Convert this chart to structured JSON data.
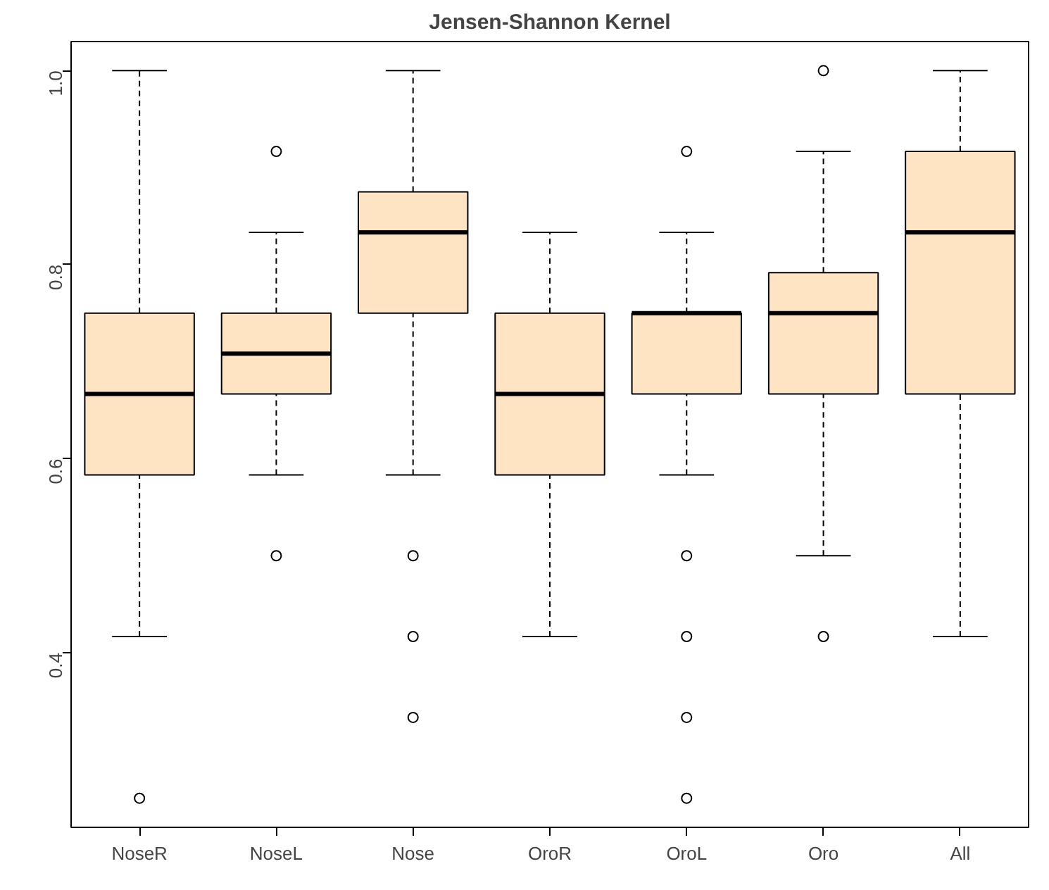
{
  "chart_data": {
    "type": "box",
    "title": "Jensen-Shannon Kernel",
    "categories": [
      "NoseR",
      "NoseL",
      "Nose",
      "OroR",
      "OroL",
      "Oro",
      "All"
    ],
    "series": [
      {
        "color": "#ffe4c4",
        "boxes": [
          {
            "low": 0.4167,
            "q1": 0.5833,
            "median": 0.6667,
            "q3": 0.75,
            "high": 1.0,
            "outliers": [
              0.25
            ]
          },
          {
            "low": 0.5833,
            "q1": 0.6667,
            "median": 0.7083,
            "q3": 0.75,
            "high": 0.8333,
            "outliers": [
              0.9167,
              0.5
            ]
          },
          {
            "low": 0.5833,
            "q1": 0.75,
            "median": 0.8333,
            "q3": 0.875,
            "high": 1.0,
            "outliers": [
              0.5,
              0.4167,
              0.3333
            ]
          },
          {
            "low": 0.4167,
            "q1": 0.5833,
            "median": 0.6667,
            "q3": 0.75,
            "high": 0.8333
          },
          {
            "low": 0.5833,
            "q1": 0.6667,
            "median": 0.75,
            "q3": 0.75,
            "high": 0.8333,
            "outliers": [
              0.9167,
              0.5,
              0.4167,
              0.3333,
              0.25
            ]
          },
          {
            "low": 0.5,
            "q1": 0.6667,
            "median": 0.75,
            "q3": 0.7917,
            "high": 0.9167,
            "outliers": [
              1.0,
              0.4167
            ]
          },
          {
            "low": 0.4167,
            "q1": 0.6667,
            "median": 0.8333,
            "q3": 0.9167,
            "high": 1.0
          }
        ]
      }
    ],
    "ylim": [
      0.22,
      1.03
    ],
    "yticks": [
      0.4,
      0.6,
      0.8,
      {
        "value": 1.0,
        "label": "1.0"
      }
    ],
    "grid": false,
    "marker": "circle"
  }
}
